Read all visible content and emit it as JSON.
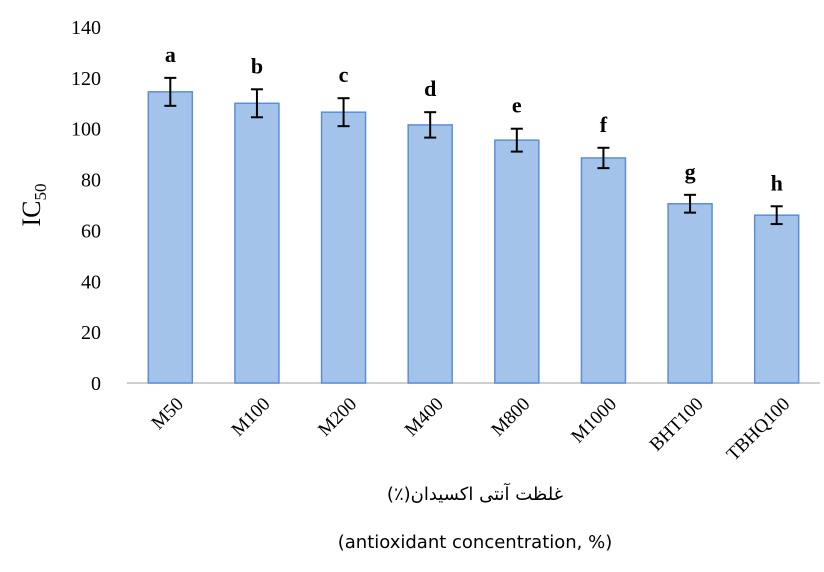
{
  "chart_data": {
    "type": "bar",
    "categories": [
      "M50",
      "M100",
      "M200",
      "M400",
      "M800",
      "M1000",
      "BHT100",
      "TBHQ100"
    ],
    "values": [
      114.5,
      110,
      106.5,
      101.5,
      95.5,
      88.5,
      70.5,
      66
    ],
    "errors": [
      5.5,
      5.5,
      5.5,
      5,
      4.5,
      4,
      3.5,
      3.5
    ],
    "significance_labels": [
      "a",
      "b",
      "c",
      "d",
      "e",
      "f",
      "g",
      "h"
    ],
    "ylabel_main": "IC",
    "ylabel_sub": "50",
    "xlabel_fa": "غلظت آنتی اکسیدان(٪)",
    "xlabel_en": "(antioxidant concentration, %)",
    "ylim": [
      0,
      140
    ],
    "yticks": [
      0,
      20,
      40,
      60,
      80,
      100,
      120,
      140
    ],
    "bar_color": "#a3c3ea",
    "bar_edge_color": "#5b8fd4",
    "grid": false,
    "legend": "none"
  }
}
